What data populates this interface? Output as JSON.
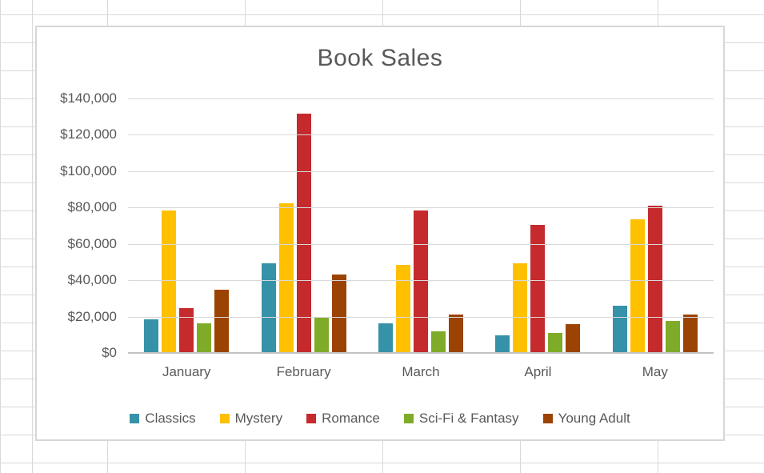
{
  "sheet": {
    "gridline_color": "#d9d9d9",
    "background": "#ffffff"
  },
  "chart_frame": {
    "border_color": "#d7d7d7",
    "background": "#ffffff"
  },
  "chart_data": {
    "type": "bar",
    "title": "Book Sales",
    "categories": [
      "January",
      "February",
      "March",
      "April",
      "May"
    ],
    "series": [
      {
        "name": "Classics",
        "color": "#3692a8",
        "values": [
          18500,
          49500,
          16500,
          9500,
          26000
        ]
      },
      {
        "name": "Mystery",
        "color": "#ffc000",
        "values": [
          78500,
          82500,
          48500,
          49500,
          73500
        ]
      },
      {
        "name": "Romance",
        "color": "#c52a2d",
        "values": [
          24500,
          131500,
          78500,
          70500,
          81000
        ]
      },
      {
        "name": "Sci-Fi & Fantasy",
        "color": "#7fac28",
        "values": [
          16500,
          19500,
          12000,
          11000,
          17500
        ]
      },
      {
        "name": "Young Adult",
        "color": "#9b4303",
        "values": [
          35000,
          43000,
          21000,
          16000,
          21000
        ]
      }
    ],
    "y_ticks": [
      "$140,000",
      "$120,000",
      "$100,000",
      "$80,000",
      "$60,000",
      "$40,000",
      "$20,000",
      "$0"
    ],
    "ylim": [
      0,
      140000
    ],
    "tick_step": 20000,
    "xlabel": "",
    "ylabel": "",
    "grid": true,
    "legend_position": "bottom",
    "title_color": "#595959",
    "axis_text_color": "#595959",
    "gridline_color": "#d9d9d9",
    "axis_line_color": "#c3c3c3"
  }
}
